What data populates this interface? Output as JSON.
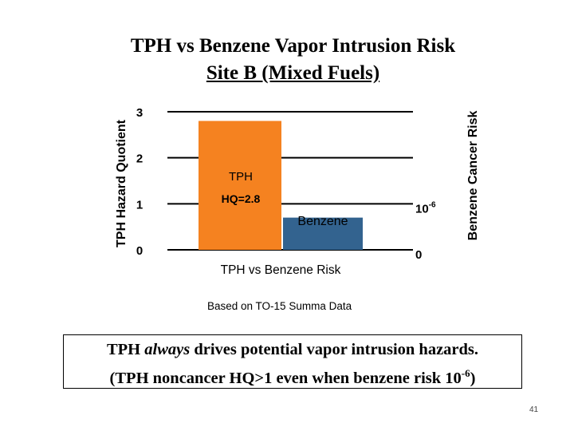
{
  "slide": {
    "title_line1": "TPH vs Benzene Vapor Intrusion Risk",
    "title_line2": "Site B (Mixed Fuels)",
    "source_note": "Based on TO-15 Summa Data",
    "callout": {
      "line1_pre": "TPH ",
      "line1_em": "always",
      "line1_post": " drives potential vapor intrusion hazards.",
      "line2_pre": "(TPH noncancer HQ>1 even when benzene risk 10",
      "line2_sup": "-6",
      "line2_post": ")"
    },
    "page_number": "41"
  },
  "chart_data": {
    "type": "bar",
    "title": "",
    "xlabel": "TPH vs Benzene Risk",
    "ylabel_left": "TPH Hazard Quotient",
    "ylabel_right": "Benzene Cancer Risk",
    "ylim": [
      0,
      3
    ],
    "left_ticks": [
      "0",
      "1",
      "2",
      "3"
    ],
    "right_ticks": [
      {
        "label": "0",
        "sup": ""
      },
      {
        "label": "10",
        "sup": "-6"
      }
    ],
    "right_tick_values": [
      0,
      1
    ],
    "grid": true,
    "categories": [
      "TPH",
      "Benzene"
    ],
    "values": [
      2.8,
      0.7
    ],
    "bar_labels": [
      {
        "line1": "TPH",
        "line2": "HQ=2.8"
      },
      {
        "line1": "Benzene",
        "line2": ""
      }
    ],
    "colors": [
      "#F58220",
      "#33638F"
    ]
  }
}
